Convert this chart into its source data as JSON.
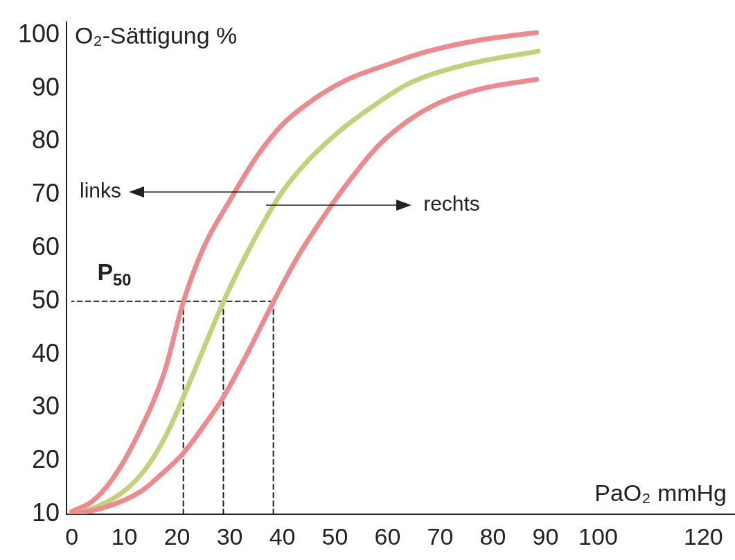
{
  "chart_data": {
    "type": "line",
    "xlabel": "PaO₂ mmHg",
    "ylabel": "O₂-Sättigung %",
    "xlim": [
      -1,
      126
    ],
    "ylim": [
      10,
      102.5
    ],
    "xticks": [
      0,
      10,
      20,
      30,
      40,
      50,
      60,
      70,
      80,
      90,
      100,
      120
    ],
    "yticks": [
      10,
      20,
      30,
      40,
      50,
      60,
      70,
      80,
      90,
      100
    ],
    "series": [
      {
        "color": "#ee8a8f",
        "x": [
          0,
          4,
          8,
          13,
          17.6,
          21.2,
          25,
          30.3,
          35,
          40.1,
          46,
          52,
          60,
          67,
          77,
          88.3
        ],
        "values": [
          10.5,
          12.5,
          17,
          25.8,
          36.7,
          49.9,
          60,
          69.4,
          77,
          83.3,
          88,
          91.5,
          94.5,
          96.8,
          99,
          100.5
        ]
      },
      {
        "color": "#c5d07a",
        "x": [
          0,
          5,
          10,
          14,
          18,
          21.2,
          25,
          28.8,
          33,
          39.2,
          44,
          50.3,
          57,
          64,
          75,
          88.6
        ],
        "values": [
          10,
          11.5,
          14.4,
          18.5,
          25,
          32,
          41,
          49.9,
          58.5,
          69.4,
          75.5,
          81.5,
          86.5,
          90.9,
          94.5,
          97
        ]
      },
      {
        "color": "#ee8a8f",
        "x": [
          0,
          6,
          13,
          17,
          21.2,
          25,
          28.8,
          33.5,
          38.3,
          43,
          48.6,
          53,
          58.2,
          64,
          70,
          78,
          88.3
        ],
        "values": [
          10,
          11.2,
          14.2,
          17.5,
          21.5,
          26.5,
          32,
          40.5,
          49.9,
          58.5,
          67,
          73,
          79.2,
          84,
          87.4,
          90,
          91.7
        ]
      },
      {
        "color": "#222222",
        "line_style": "dashed",
        "x": [
          38.3,
          0
        ],
        "values": [
          50,
          50
        ]
      },
      {
        "color": "#222222",
        "line_style": "dashed",
        "x": [
          21.2,
          21.2
        ],
        "values": [
          50,
          10
        ]
      },
      {
        "color": "#222222",
        "line_style": "dashed",
        "x": [
          28.8,
          28.8
        ],
        "values": [
          50,
          10
        ]
      },
      {
        "color": "#222222",
        "line_style": "dashed",
        "x": [
          38.3,
          38.3
        ],
        "values": [
          50,
          10
        ]
      }
    ],
    "annotations": [
      "links",
      "rechts",
      "P$_{50}$"
    ]
  }
}
